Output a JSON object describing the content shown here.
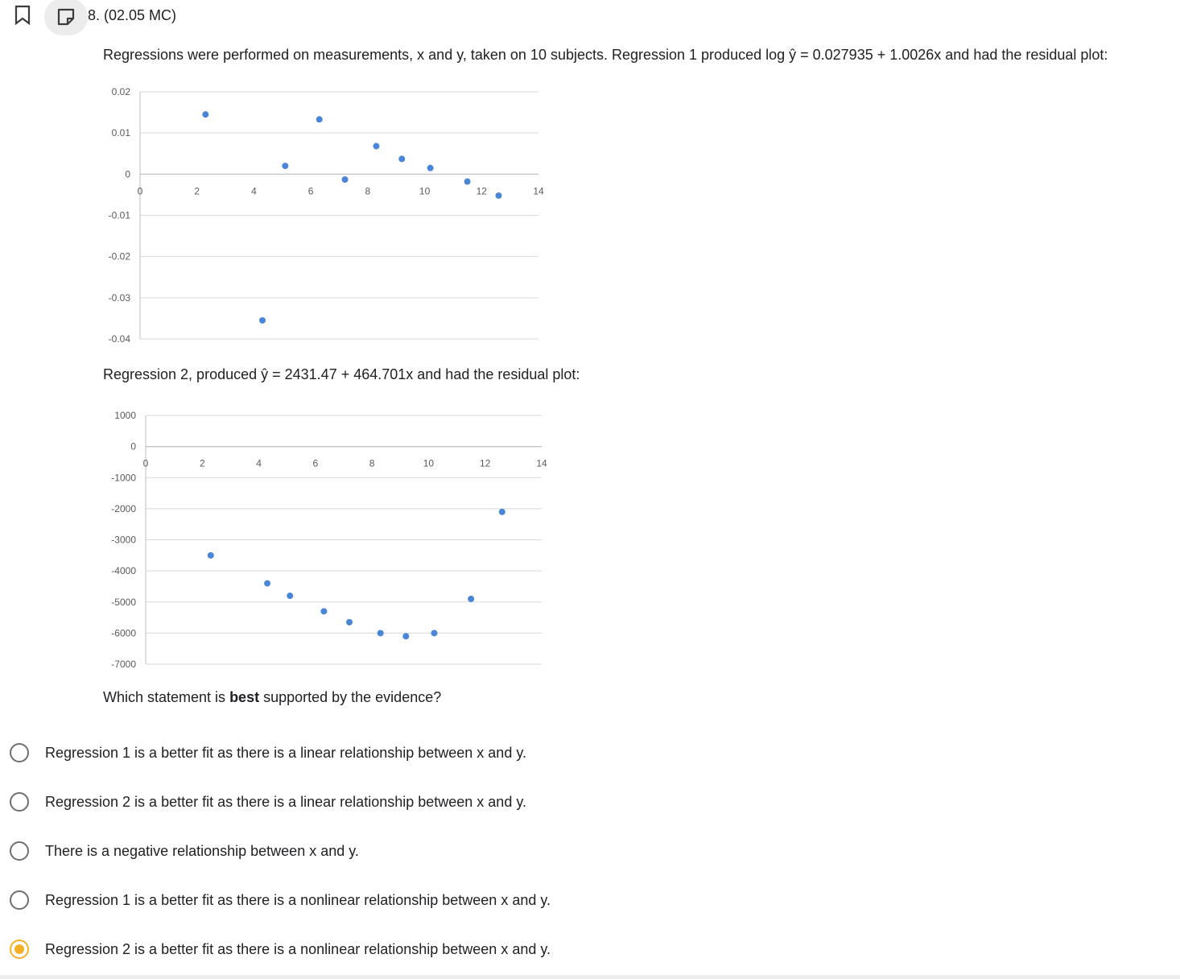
{
  "question": {
    "number_label": "8. (02.05 MC)",
    "icons": {
      "bookmark": "bookmark-icon",
      "note": "note-icon"
    },
    "prompt_1": "Regressions were performed on measurements, x and y, taken on 10 subjects. Regression 1 produced log ŷ = 0.027935 + 1.0026x and had the residual plot:",
    "prompt_2": "Regression 2, produced ŷ = 2431.47 + 464.701x and had the residual plot:",
    "prompt_3_pre": "Which statement is ",
    "prompt_3_bold": "best",
    "prompt_3_post": " supported by the evidence?"
  },
  "colors": {
    "point": "#4a86d8",
    "grid": "#d9d9d9",
    "axis_text": "#595959",
    "selected": "#f5b027"
  },
  "chart_data": [
    {
      "type": "scatter",
      "title": "",
      "xlabel": "",
      "ylabel": "",
      "xlim": [
        0,
        14
      ],
      "ylim": [
        -0.04,
        0.02
      ],
      "x_ticks": [
        "0",
        "2",
        "4",
        "6",
        "8",
        "10",
        "12",
        "14"
      ],
      "y_ticks": [
        "0.02",
        "0.01",
        "0",
        "-0.01",
        "-0.02",
        "-0.03",
        "-0.04"
      ],
      "grid": true,
      "x": [
        2.3,
        4.3,
        5.1,
        6.3,
        7.2,
        8.3,
        9.2,
        10.2,
        11.5,
        12.6
      ],
      "y": [
        0.0145,
        -0.0355,
        0.002,
        0.0133,
        -0.0013,
        0.0068,
        0.0037,
        0.0015,
        -0.0018,
        -0.0052
      ]
    },
    {
      "type": "scatter",
      "title": "",
      "xlabel": "",
      "ylabel": "",
      "xlim": [
        0,
        14
      ],
      "ylim": [
        -7000,
        1000
      ],
      "x_ticks": [
        "0",
        "2",
        "4",
        "6",
        "8",
        "10",
        "12",
        "14"
      ],
      "y_ticks": [
        "1000",
        "0",
        "-1000",
        "-2000",
        "-3000",
        "-4000",
        "-5000",
        "-6000",
        "-7000"
      ],
      "grid": true,
      "x": [
        2.3,
        4.3,
        5.1,
        6.3,
        7.2,
        8.3,
        9.2,
        10.2,
        11.5,
        12.6
      ],
      "y": [
        -3500,
        -4400,
        -4800,
        -5300,
        -5650,
        -6000,
        -6100,
        -6000,
        -4900,
        -2100
      ]
    }
  ],
  "options": [
    {
      "label": "Regression 1 is a better fit as there is a linear relationship between x and y.",
      "selected": false
    },
    {
      "label": "Regression 2 is a better fit as there is a linear relationship between x and y.",
      "selected": false
    },
    {
      "label": "There is a negative relationship between x and y.",
      "selected": false
    },
    {
      "label": "Regression 1 is a better fit as there is a nonlinear relationship between x and y.",
      "selected": false
    },
    {
      "label": "Regression 2 is a better fit as there is a nonlinear relationship between x and y.",
      "selected": true
    }
  ]
}
